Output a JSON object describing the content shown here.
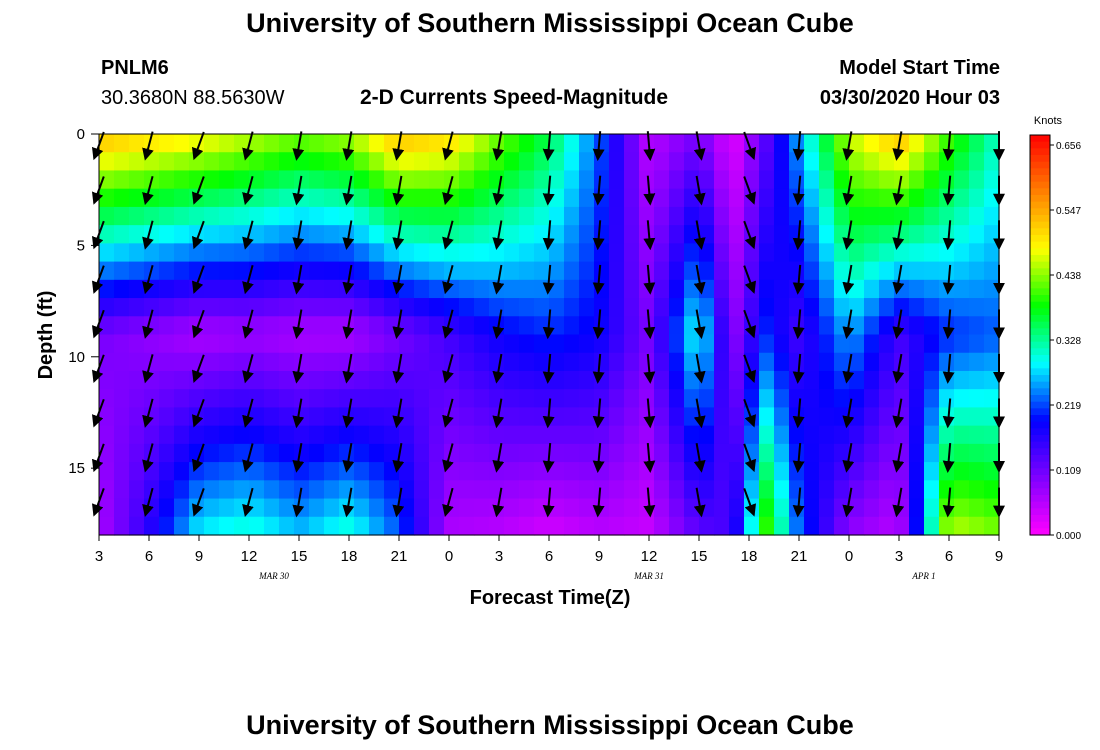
{
  "page": {
    "title_top": "University of Southern Mississippi Ocean Cube",
    "title_bottom": "University of Southern Mississippi Ocean Cube",
    "station_id": "PNLM6",
    "station_coords": "30.3680N 88.5630W",
    "plot_title": "2-D Currents Speed-Magnitude",
    "model_start_label": "Model Start Time",
    "model_start_value": "03/30/2020 Hour 03"
  },
  "chart_data": {
    "type": "heatmap",
    "title": "2-D Currents Speed-Magnitude",
    "xlabel": "Forecast Time(Z)",
    "ylabel": "Depth (ft)",
    "x_tick_labels": [
      "3",
      "6",
      "9",
      "12",
      "15",
      "18",
      "21",
      "0",
      "3",
      "6",
      "9",
      "12",
      "15",
      "18",
      "21",
      "0",
      "3",
      "6",
      "9"
    ],
    "x_range_hours": [
      0,
      54
    ],
    "date_labels": [
      {
        "text": "MAR 30",
        "hour_offset": 10.5
      },
      {
        "text": "MAR 31",
        "hour_offset": 33
      },
      {
        "text": "APR 1",
        "hour_offset": 49.5
      }
    ],
    "y_tick_labels": [
      "0",
      "5",
      "10",
      "15"
    ],
    "y_tick_values": [
      0,
      5,
      10,
      15
    ],
    "ylim": [
      0,
      18
    ],
    "y_inverted": true,
    "colorbar": {
      "label": "Knots",
      "ticks": [
        "0.656",
        "0.547",
        "0.438",
        "0.328",
        "0.219",
        "0.109",
        "0.000"
      ],
      "range": [
        0,
        0.656
      ],
      "colors": [
        "#ff00ff",
        "#7f00ff",
        "#0000ff",
        "#00ffff",
        "#00ff00",
        "#ffff00",
        "#ff8000",
        "#ff0000"
      ]
    },
    "grid": false,
    "columns": [
      {
        "hour": 0,
        "top": 0.52,
        "mid": 0.1,
        "bottom": 0.06,
        "dir": 200
      },
      {
        "hour": 3,
        "top": 0.5,
        "mid": 0.08,
        "bottom": 0.16,
        "dir": 195
      },
      {
        "hour": 6,
        "top": 0.48,
        "mid": 0.06,
        "bottom": 0.28,
        "dir": 200
      },
      {
        "hour": 9,
        "top": 0.45,
        "mid": 0.07,
        "bottom": 0.3,
        "dir": 195
      },
      {
        "hour": 12,
        "top": 0.42,
        "mid": 0.06,
        "bottom": 0.26,
        "dir": 190
      },
      {
        "hour": 15,
        "top": 0.44,
        "mid": 0.06,
        "bottom": 0.3,
        "dir": 190
      },
      {
        "hour": 18,
        "top": 0.52,
        "mid": 0.1,
        "bottom": 0.22,
        "dir": 190
      },
      {
        "hour": 21,
        "top": 0.5,
        "mid": 0.14,
        "bottom": 0.06,
        "dir": 195
      },
      {
        "hour": 24,
        "top": 0.42,
        "mid": 0.18,
        "bottom": 0.05,
        "dir": 190
      },
      {
        "hour": 27,
        "top": 0.35,
        "mid": 0.2,
        "bottom": 0.03,
        "dir": 185
      },
      {
        "hour": 30,
        "top": 0.22,
        "mid": 0.18,
        "bottom": 0.05,
        "dir": 185
      },
      {
        "hour": 33,
        "top": 0.05,
        "mid": 0.1,
        "bottom": 0.04,
        "dir": 175
      },
      {
        "hour": 36,
        "top": 0.1,
        "mid": 0.3,
        "bottom": 0.12,
        "dir": 170
      },
      {
        "hour": 38,
        "top": 0.02,
        "mid": 0.08,
        "bottom": 0.14,
        "dir": 160
      },
      {
        "hour": 40,
        "top": 0.12,
        "mid": 0.2,
        "bottom": 0.4,
        "dir": 175
      },
      {
        "hour": 42,
        "top": 0.25,
        "mid": 0.14,
        "bottom": 0.22,
        "dir": 185
      },
      {
        "hour": 45,
        "top": 0.45,
        "mid": 0.25,
        "bottom": 0.08,
        "dir": 190
      },
      {
        "hour": 48,
        "top": 0.52,
        "mid": 0.14,
        "bottom": 0.05,
        "dir": 190
      },
      {
        "hour": 51,
        "top": 0.4,
        "mid": 0.2,
        "bottom": 0.45,
        "dir": 185
      },
      {
        "hour": 54,
        "top": 0.3,
        "mid": 0.22,
        "bottom": 0.42,
        "dir": 180
      }
    ]
  }
}
